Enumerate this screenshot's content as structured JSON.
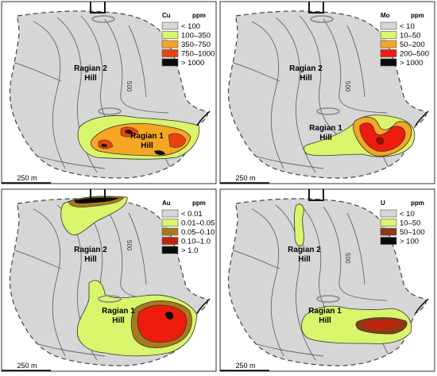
{
  "panels": [
    {
      "element": "Cu",
      "unit": "ppm",
      "legend": [
        {
          "label": "< 100",
          "color": "#d6d6d6"
        },
        {
          "label": "100–350",
          "color": "#d8f56b"
        },
        {
          "label": "350–750",
          "color": "#f5a623"
        },
        {
          "label": "750–1000",
          "color": "#e8430f"
        },
        {
          "label": "> 1000",
          "color": "#0a0a0a"
        }
      ],
      "labels": {
        "hill2": [
          "Ragian 2",
          "Hill"
        ],
        "hill1": [
          "Ragian 1",
          "Hill"
        ],
        "contour": "500",
        "scale": "250 m"
      }
    },
    {
      "element": "Mo",
      "unit": "ppm",
      "legend": [
        {
          "label": "< 10",
          "color": "#d6d6d6"
        },
        {
          "label": "10–50",
          "color": "#d8f56b"
        },
        {
          "label": "50–200",
          "color": "#f5a623"
        },
        {
          "label": "200–500",
          "color": "#ee1c0e"
        },
        {
          "label": "> 1000",
          "color": "#0a0a0a"
        }
      ],
      "labels": {
        "hill2": [
          "Ragian 2",
          "Hill"
        ],
        "hill1": [
          "Ragian 1",
          "Hill"
        ],
        "contour": "500",
        "scale": "250 m"
      }
    },
    {
      "element": "Au",
      "unit": "ppm",
      "legend": [
        {
          "label": "< 0.01",
          "color": "#d6d6d6"
        },
        {
          "label": "0.01–0.05",
          "color": "#d8f56b"
        },
        {
          "label": "0.05–0.10",
          "color": "#a87a1a"
        },
        {
          "label": "0.10–1.0",
          "color": "#c0230f"
        },
        {
          "label": "> 1.0",
          "color": "#0a0a0a"
        }
      ],
      "labels": {
        "hill2": [
          "Ragian 2",
          "Hill"
        ],
        "hill1": [
          "Ragian 1",
          "Hill"
        ],
        "contour": "500",
        "scale": "250 m"
      }
    },
    {
      "element": "U",
      "unit": "ppm",
      "legend": [
        {
          "label": "< 10",
          "color": "#d6d6d6"
        },
        {
          "label": "10–50",
          "color": "#d8f56b"
        },
        {
          "label": "50–100",
          "color": "#8a3a14"
        },
        {
          "label": "> 100",
          "color": "#0a0a0a"
        }
      ],
      "labels": {
        "hill2": [
          "Ragian 2",
          "Hill"
        ],
        "hill1": [
          "Ragian 1",
          "Hill"
        ],
        "contour": "500",
        "scale": "250 m"
      }
    }
  ],
  "colors": {
    "outline": "#333333",
    "contour": "#555555",
    "background": "#d6d6d6"
  }
}
